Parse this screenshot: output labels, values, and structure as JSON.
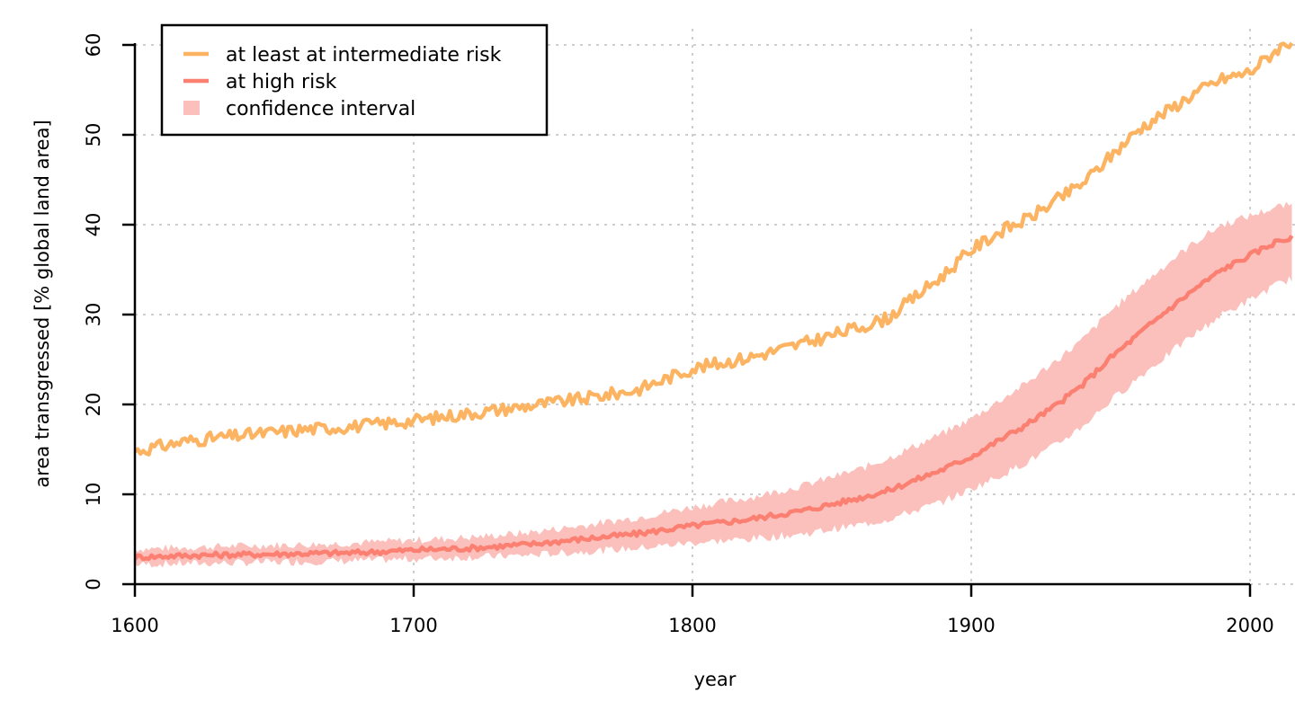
{
  "chart_data": {
    "type": "line",
    "xlabel": "year",
    "ylabel": "area transgressed [% global land area]",
    "xlim": [
      1600,
      2015
    ],
    "ylim": [
      0,
      60
    ],
    "xticks": [
      1600,
      1700,
      1800,
      1900,
      2000
    ],
    "yticks": [
      0,
      10,
      20,
      30,
      40,
      50,
      60
    ],
    "grid": true,
    "legend_position": "top-left",
    "legend": [
      "at least at intermediate risk",
      "at high risk",
      "confidence interval"
    ],
    "x": [
      1600,
      1620,
      1640,
      1660,
      1680,
      1700,
      1720,
      1740,
      1760,
      1780,
      1800,
      1820,
      1840,
      1860,
      1870,
      1880,
      1890,
      1900,
      1910,
      1920,
      1930,
      1940,
      1950,
      1960,
      1970,
      1980,
      1990,
      2000,
      2010,
      2015
    ],
    "series": [
      {
        "name": "at least at intermediate risk",
        "color": "#fdb462",
        "values": [
          14.8,
          16.0,
          16.6,
          17.2,
          17.6,
          18.2,
          19.0,
          19.8,
          20.6,
          21.6,
          24.0,
          25.2,
          26.8,
          28.6,
          29.6,
          32.0,
          34.4,
          37.2,
          39.2,
          40.6,
          42.6,
          44.6,
          47.6,
          50.6,
          52.6,
          54.6,
          56.2,
          57.0,
          59.6,
          60.5
        ]
      },
      {
        "name": "at high risk",
        "color": "#fb8072",
        "values": [
          3.0,
          3.2,
          3.3,
          3.4,
          3.5,
          3.8,
          4.0,
          4.4,
          5.0,
          5.6,
          6.5,
          7.2,
          8.2,
          9.6,
          10.4,
          11.6,
          12.8,
          14.2,
          16.0,
          17.8,
          19.8,
          22.2,
          25.2,
          27.8,
          30.4,
          32.8,
          35.0,
          36.6,
          38.2,
          38.5
        ]
      }
    ],
    "confidence_interval": {
      "name": "confidence interval",
      "color": "#fbc0bb",
      "lower": [
        2.2,
        2.3,
        2.4,
        2.5,
        2.6,
        2.8,
        3.0,
        3.2,
        3.6,
        4.0,
        4.6,
        5.0,
        5.6,
        6.6,
        7.2,
        8.2,
        9.2,
        10.6,
        12.0,
        13.6,
        15.4,
        17.6,
        20.4,
        23.0,
        25.4,
        27.8,
        30.0,
        31.6,
        33.4,
        34.0
      ],
      "upper": [
        3.9,
        4.1,
        4.3,
        4.4,
        4.6,
        4.9,
        5.2,
        5.7,
        6.5,
        7.4,
        8.6,
        9.6,
        11.0,
        12.8,
        14.0,
        15.4,
        16.8,
        18.4,
        20.4,
        22.4,
        24.8,
        27.2,
        30.4,
        33.0,
        35.6,
        38.0,
        40.0,
        41.0,
        42.0,
        42.2
      ]
    }
  }
}
